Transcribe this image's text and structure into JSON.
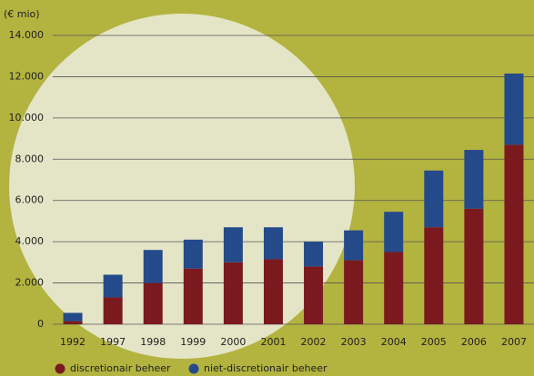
{
  "chart_data": {
    "type": "stacked-bar",
    "y_axis_label": "(€ mio)",
    "categories": [
      "1992",
      "1997",
      "1998",
      "1999",
      "2000",
      "2001",
      "2002",
      "2003",
      "2004",
      "2005",
      "2006",
      "2007"
    ],
    "series": [
      {
        "name": "discretionair beheer",
        "color": "#7b1a1e",
        "values": [
          150,
          1300,
          2000,
          2700,
          3000,
          3150,
          2800,
          3100,
          3500,
          4700,
          5600,
          8700
        ]
      },
      {
        "name": "niet-discretionair beheer",
        "color": "#244a8a",
        "values": [
          400,
          1100,
          1600,
          1400,
          1700,
          1550,
          1200,
          1450,
          1950,
          2750,
          2850,
          3450
        ]
      }
    ],
    "ylim": [
      0,
      14000
    ],
    "yticks": [
      0,
      {
        "value": 2000,
        "label": "2.000"
      },
      {
        "value": 4000,
        "label": "4.000"
      },
      {
        "value": 6000,
        "label": "6.000"
      },
      {
        "value": 8000,
        "label": "8.000"
      },
      {
        "value": 10000,
        "label": "10.000"
      },
      {
        "value": 12000,
        "label": "12.000"
      },
      {
        "value": 14000,
        "label": "14.000"
      }
    ],
    "grid": true
  }
}
